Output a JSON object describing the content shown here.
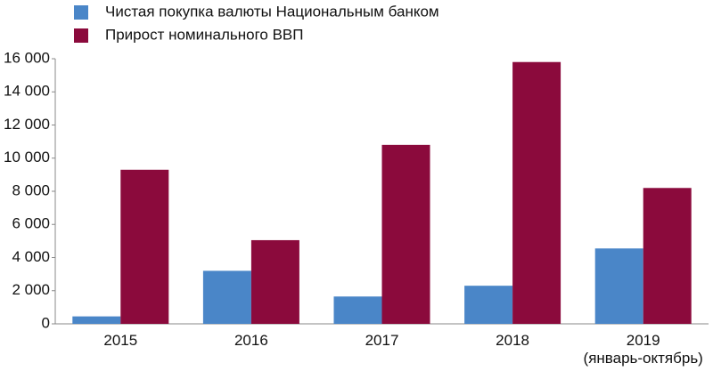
{
  "chart_data": {
    "type": "bar",
    "categories": [
      "2015",
      "2016",
      "2017",
      "2018",
      "2019\n(январь-октябрь)"
    ],
    "series": [
      {
        "name": "Чистая покупка валюты Национальным банком",
        "color": "#4a86c8",
        "values": [
          450,
          3200,
          1650,
          2300,
          4550
        ]
      },
      {
        "name": "Прирост номинального ВВП",
        "color": "#8b0a3c",
        "values": [
          9300,
          5050,
          10800,
          15800,
          8200
        ]
      }
    ],
    "ylim": [
      0,
      16000
    ],
    "yticks": [
      0,
      {
        "value": 2000,
        "label": "2 000"
      },
      {
        "value": 4000,
        "label": "4 000"
      },
      {
        "value": 6000,
        "label": "6 000"
      },
      {
        "value": 8000,
        "label": "8 000"
      },
      {
        "value": 10000,
        "label": "10 000"
      },
      {
        "value": 12000,
        "label": "12 000"
      },
      {
        "value": 14000,
        "label": "14 000"
      },
      {
        "value": 16000,
        "label": "16 000"
      }
    ],
    "grid": false,
    "legend": "top-left"
  }
}
